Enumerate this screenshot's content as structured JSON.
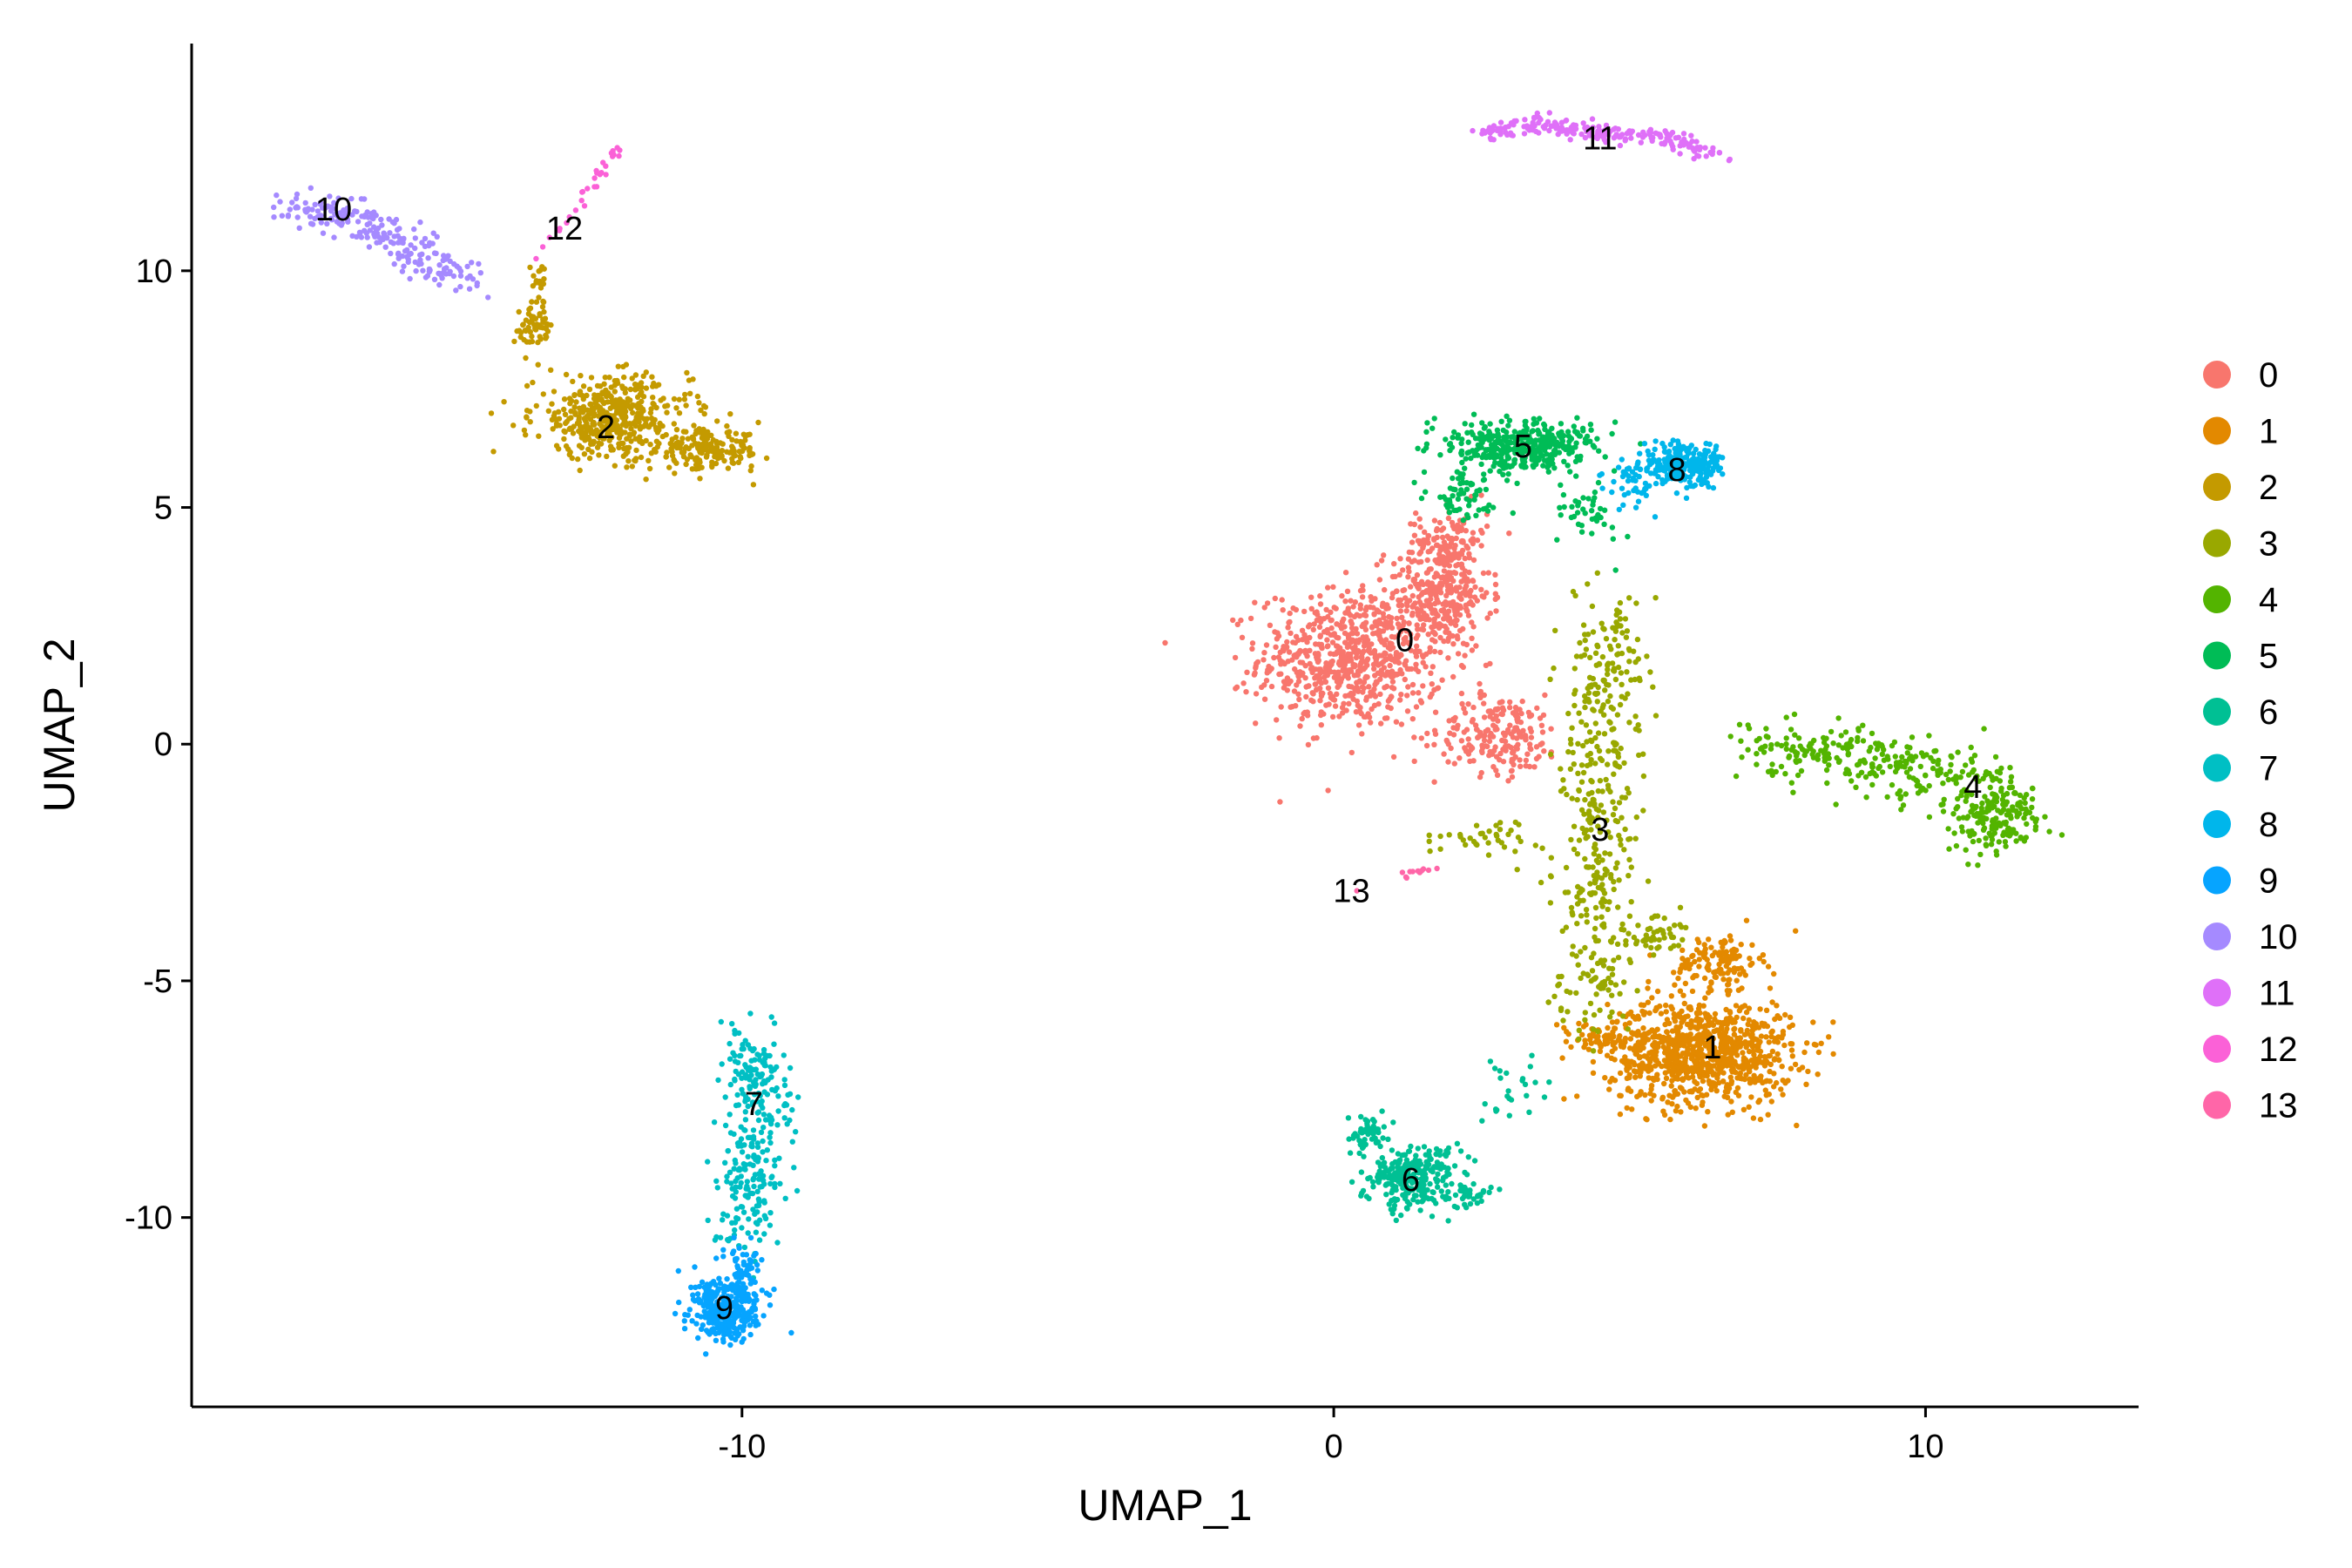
{
  "chart_data": {
    "type": "scatter",
    "xlabel": "UMAP_1",
    "ylabel": "UMAP_2",
    "xlim": [
      -19.3,
      13.6
    ],
    "ylim": [
      -14.0,
      14.8
    ],
    "x_ticks": [
      "-10",
      "0",
      "10"
    ],
    "x_tick_values": [
      -10,
      0,
      10
    ],
    "y_ticks": [
      "-10",
      "-5",
      "0",
      "5",
      "10"
    ],
    "y_tick_values": [
      -10,
      -5,
      0,
      5,
      10
    ],
    "grid": false,
    "legend_position": "right",
    "clusters": [
      {
        "name": "0",
        "color": "#F8766D",
        "label_pos": [
          1.2,
          2.2
        ],
        "blobs": [
          [
            0.3,
            1.8,
            1.3,
            1.2,
            700
          ],
          [
            1.8,
            3.2,
            0.7,
            1.0,
            300
          ],
          [
            2.8,
            0.2,
            0.9,
            0.7,
            200
          ],
          [
            2.0,
            4.3,
            0.5,
            0.6,
            100
          ]
        ]
      },
      {
        "name": "1",
        "color": "#E38900",
        "label_pos": [
          6.4,
          -6.4
        ],
        "blobs": [
          [
            6.2,
            -6.5,
            1.3,
            0.9,
            900
          ],
          [
            6.5,
            -4.6,
            0.6,
            0.5,
            120
          ],
          [
            4.5,
            -6.2,
            0.8,
            0.3,
            60
          ]
        ]
      },
      {
        "name": "2",
        "color": "#C49A00",
        "label_pos": [
          -12.3,
          6.7
        ],
        "blobs": [
          [
            -12.2,
            6.9,
            1.1,
            0.7,
            450
          ],
          [
            -10.6,
            6.2,
            0.8,
            0.35,
            180
          ],
          [
            -13.5,
            8.8,
            0.25,
            0.5,
            60
          ],
          [
            -13.4,
            9.9,
            0.12,
            0.25,
            15
          ]
        ]
      },
      {
        "name": "3",
        "color": "#99A800",
        "label_pos": [
          4.5,
          -1.8
        ],
        "chain": [
          [
            4.7,
            2.8
          ],
          [
            4.5,
            0.5
          ],
          [
            4.4,
            -1.8
          ],
          [
            4.5,
            -4.6
          ],
          [
            4.2,
            -5.8
          ]
        ],
        "chain_spread": [
          0.35,
          0.5
        ],
        "chain_count": 450,
        "blobs": [
          [
            2.6,
            -2.0,
            0.9,
            0.3,
            40
          ],
          [
            5.5,
            -4.0,
            0.4,
            0.3,
            40
          ]
        ]
      },
      {
        "name": "4",
        "color": "#53B400",
        "label_pos": [
          10.8,
          -0.9
        ],
        "chain": [
          [
            7.2,
            0.0
          ],
          [
            9.0,
            -0.3
          ],
          [
            10.5,
            -0.7
          ],
          [
            11.5,
            -1.4
          ]
        ],
        "chain_spread": [
          0.4,
          0.35
        ],
        "chain_count": 300,
        "blobs": [
          [
            11.2,
            -1.6,
            0.6,
            0.6,
            150
          ]
        ]
      },
      {
        "name": "5",
        "color": "#00BC56",
        "label_pos": [
          3.2,
          6.3
        ],
        "blobs": [
          [
            3.2,
            6.3,
            1.0,
            0.45,
            400
          ],
          [
            2.2,
            5.2,
            0.5,
            0.4,
            60
          ],
          [
            4.3,
            4.8,
            0.5,
            0.6,
            40
          ]
        ]
      },
      {
        "name": "6",
        "color": "#00C094",
        "label_pos": [
          1.3,
          -9.2
        ],
        "blobs": [
          [
            1.3,
            -9.1,
            0.7,
            0.5,
            280
          ],
          [
            0.6,
            -8.2,
            0.3,
            0.3,
            50
          ],
          [
            2.3,
            -9.5,
            0.4,
            0.2,
            40
          ],
          [
            2.9,
            -7.4,
            0.6,
            0.5,
            25
          ]
        ]
      },
      {
        "name": "7",
        "color": "#00BFC4",
        "label_pos": [
          -9.8,
          -7.6
        ],
        "chain": [
          [
            -9.8,
            -6.3
          ],
          [
            -9.7,
            -7.6
          ],
          [
            -9.8,
            -9.0
          ],
          [
            -10.0,
            -10.4
          ]
        ],
        "chain_spread": [
          0.3,
          0.35
        ],
        "chain_count": 300
      },
      {
        "name": "8",
        "color": "#00B6EB",
        "label_pos": [
          5.8,
          5.8
        ],
        "blobs": [
          [
            5.9,
            5.9,
            0.55,
            0.4,
            260
          ],
          [
            5.0,
            5.4,
            0.4,
            0.5,
            40
          ]
        ]
      },
      {
        "name": "9",
        "color": "#06A4FF",
        "label_pos": [
          -10.3,
          -11.9
        ],
        "blobs": [
          [
            -10.3,
            -11.9,
            0.5,
            0.55,
            360
          ],
          [
            -10.0,
            -11.0,
            0.3,
            0.3,
            40
          ]
        ]
      },
      {
        "name": "10",
        "color": "#A58AFF",
        "label_pos": [
          -16.9,
          11.3
        ],
        "chain": [
          [
            -17.6,
            11.4
          ],
          [
            -16.6,
            11.2
          ],
          [
            -15.6,
            10.5
          ],
          [
            -14.7,
            9.8
          ]
        ],
        "chain_spread": [
          0.25,
          0.2
        ],
        "chain_count": 220
      },
      {
        "name": "11",
        "color": "#DF70F8",
        "label_pos": [
          4.5,
          12.8
        ],
        "chain": [
          [
            2.6,
            12.9
          ],
          [
            3.5,
            13.1
          ],
          [
            4.5,
            12.9
          ],
          [
            5.6,
            12.8
          ],
          [
            6.5,
            12.4
          ]
        ],
        "chain_spread": [
          0.15,
          0.1
        ],
        "chain_count": 220
      },
      {
        "name": "12",
        "color": "#FB61D7",
        "label_pos": [
          -13.0,
          10.9
        ],
        "chain": [
          [
            -13.5,
            10.3
          ],
          [
            -13.0,
            11.0
          ],
          [
            -12.0,
            12.7
          ]
        ],
        "chain_spread": [
          0.05,
          0.05
        ],
        "chain_count": 30
      },
      {
        "name": "13",
        "color": "#FF66A8",
        "label_pos": [
          0.3,
          -3.1
        ],
        "chain": [
          [
            0.2,
            -3.1
          ],
          [
            1.8,
            -2.6
          ]
        ],
        "chain_spread": [
          0.08,
          0.06
        ],
        "chain_count": 12
      }
    ]
  }
}
